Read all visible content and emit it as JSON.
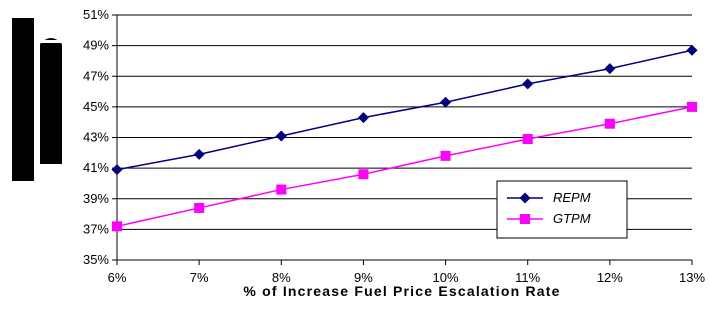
{
  "chart_data": {
    "type": "line",
    "categories": [
      "6%",
      "7%",
      "8%",
      "9%",
      "10%",
      "11%",
      "12%",
      "13%"
    ],
    "series": [
      {
        "name": "REPM",
        "values": [
          40.9,
          41.9,
          43.1,
          44.3,
          45.3,
          46.5,
          47.5,
          48.7
        ],
        "color": "#000080",
        "marker": "diamond"
      },
      {
        "name": "GTPM",
        "values": [
          37.2,
          38.4,
          39.6,
          40.6,
          41.8,
          42.9,
          43.9,
          45.0
        ],
        "color": "#ff00ff",
        "marker": "square"
      }
    ],
    "title": "",
    "xlabel": "% of Increase Fuel Price Escalation Rate",
    "ylabel": "",
    "ylim": [
      35,
      51
    ],
    "yticks": [
      "35%",
      "37%",
      "39%",
      "41%",
      "43%",
      "45%",
      "47%",
      "49%",
      "51%"
    ],
    "grid": "horizontal",
    "legend": "bottom-right"
  }
}
